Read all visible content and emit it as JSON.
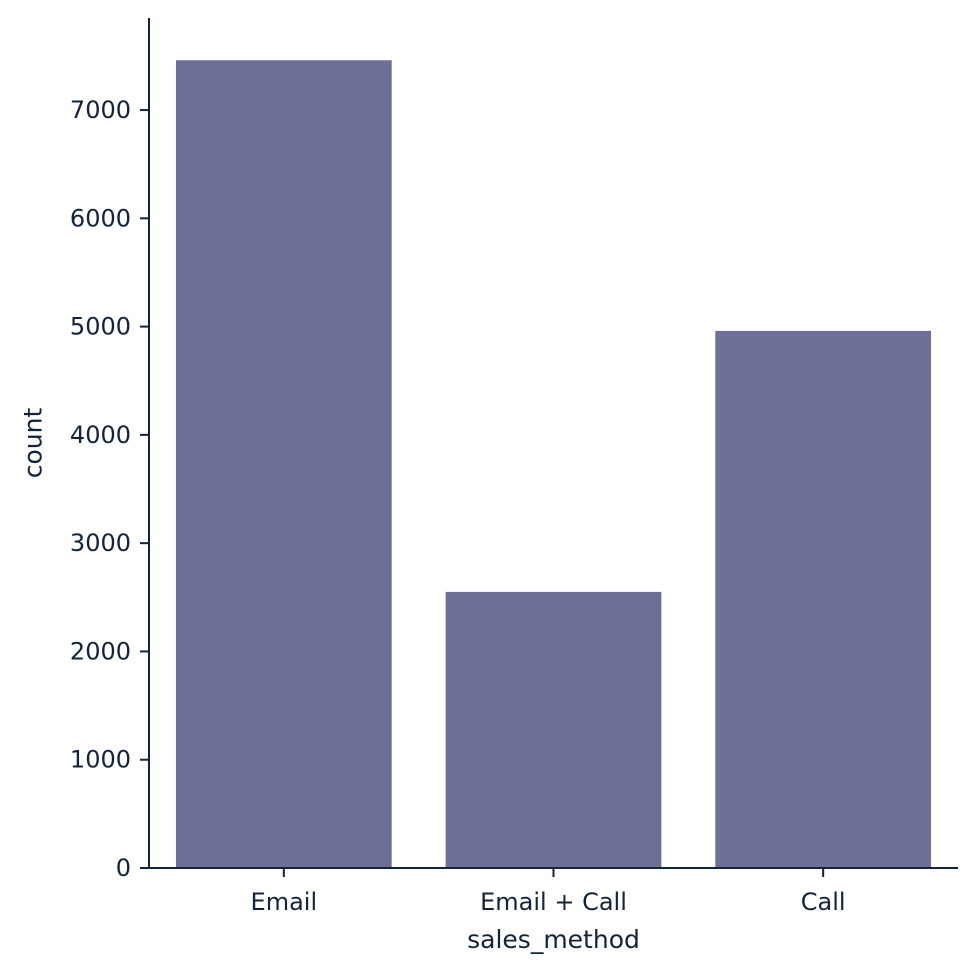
{
  "chart_data": {
    "type": "bar",
    "categories": [
      "Email",
      "Email + Call",
      "Call"
    ],
    "values": [
      7460,
      2550,
      4960
    ],
    "xlabel": "sales_method",
    "ylabel": "count",
    "ylim": [
      0,
      7850
    ],
    "yticks": [
      0,
      1000,
      2000,
      3000,
      4000,
      5000,
      6000,
      7000
    ],
    "grid": false,
    "colors": {
      "bar": "#6e6f99",
      "axis": "#13233a",
      "text": "#13233a"
    }
  }
}
